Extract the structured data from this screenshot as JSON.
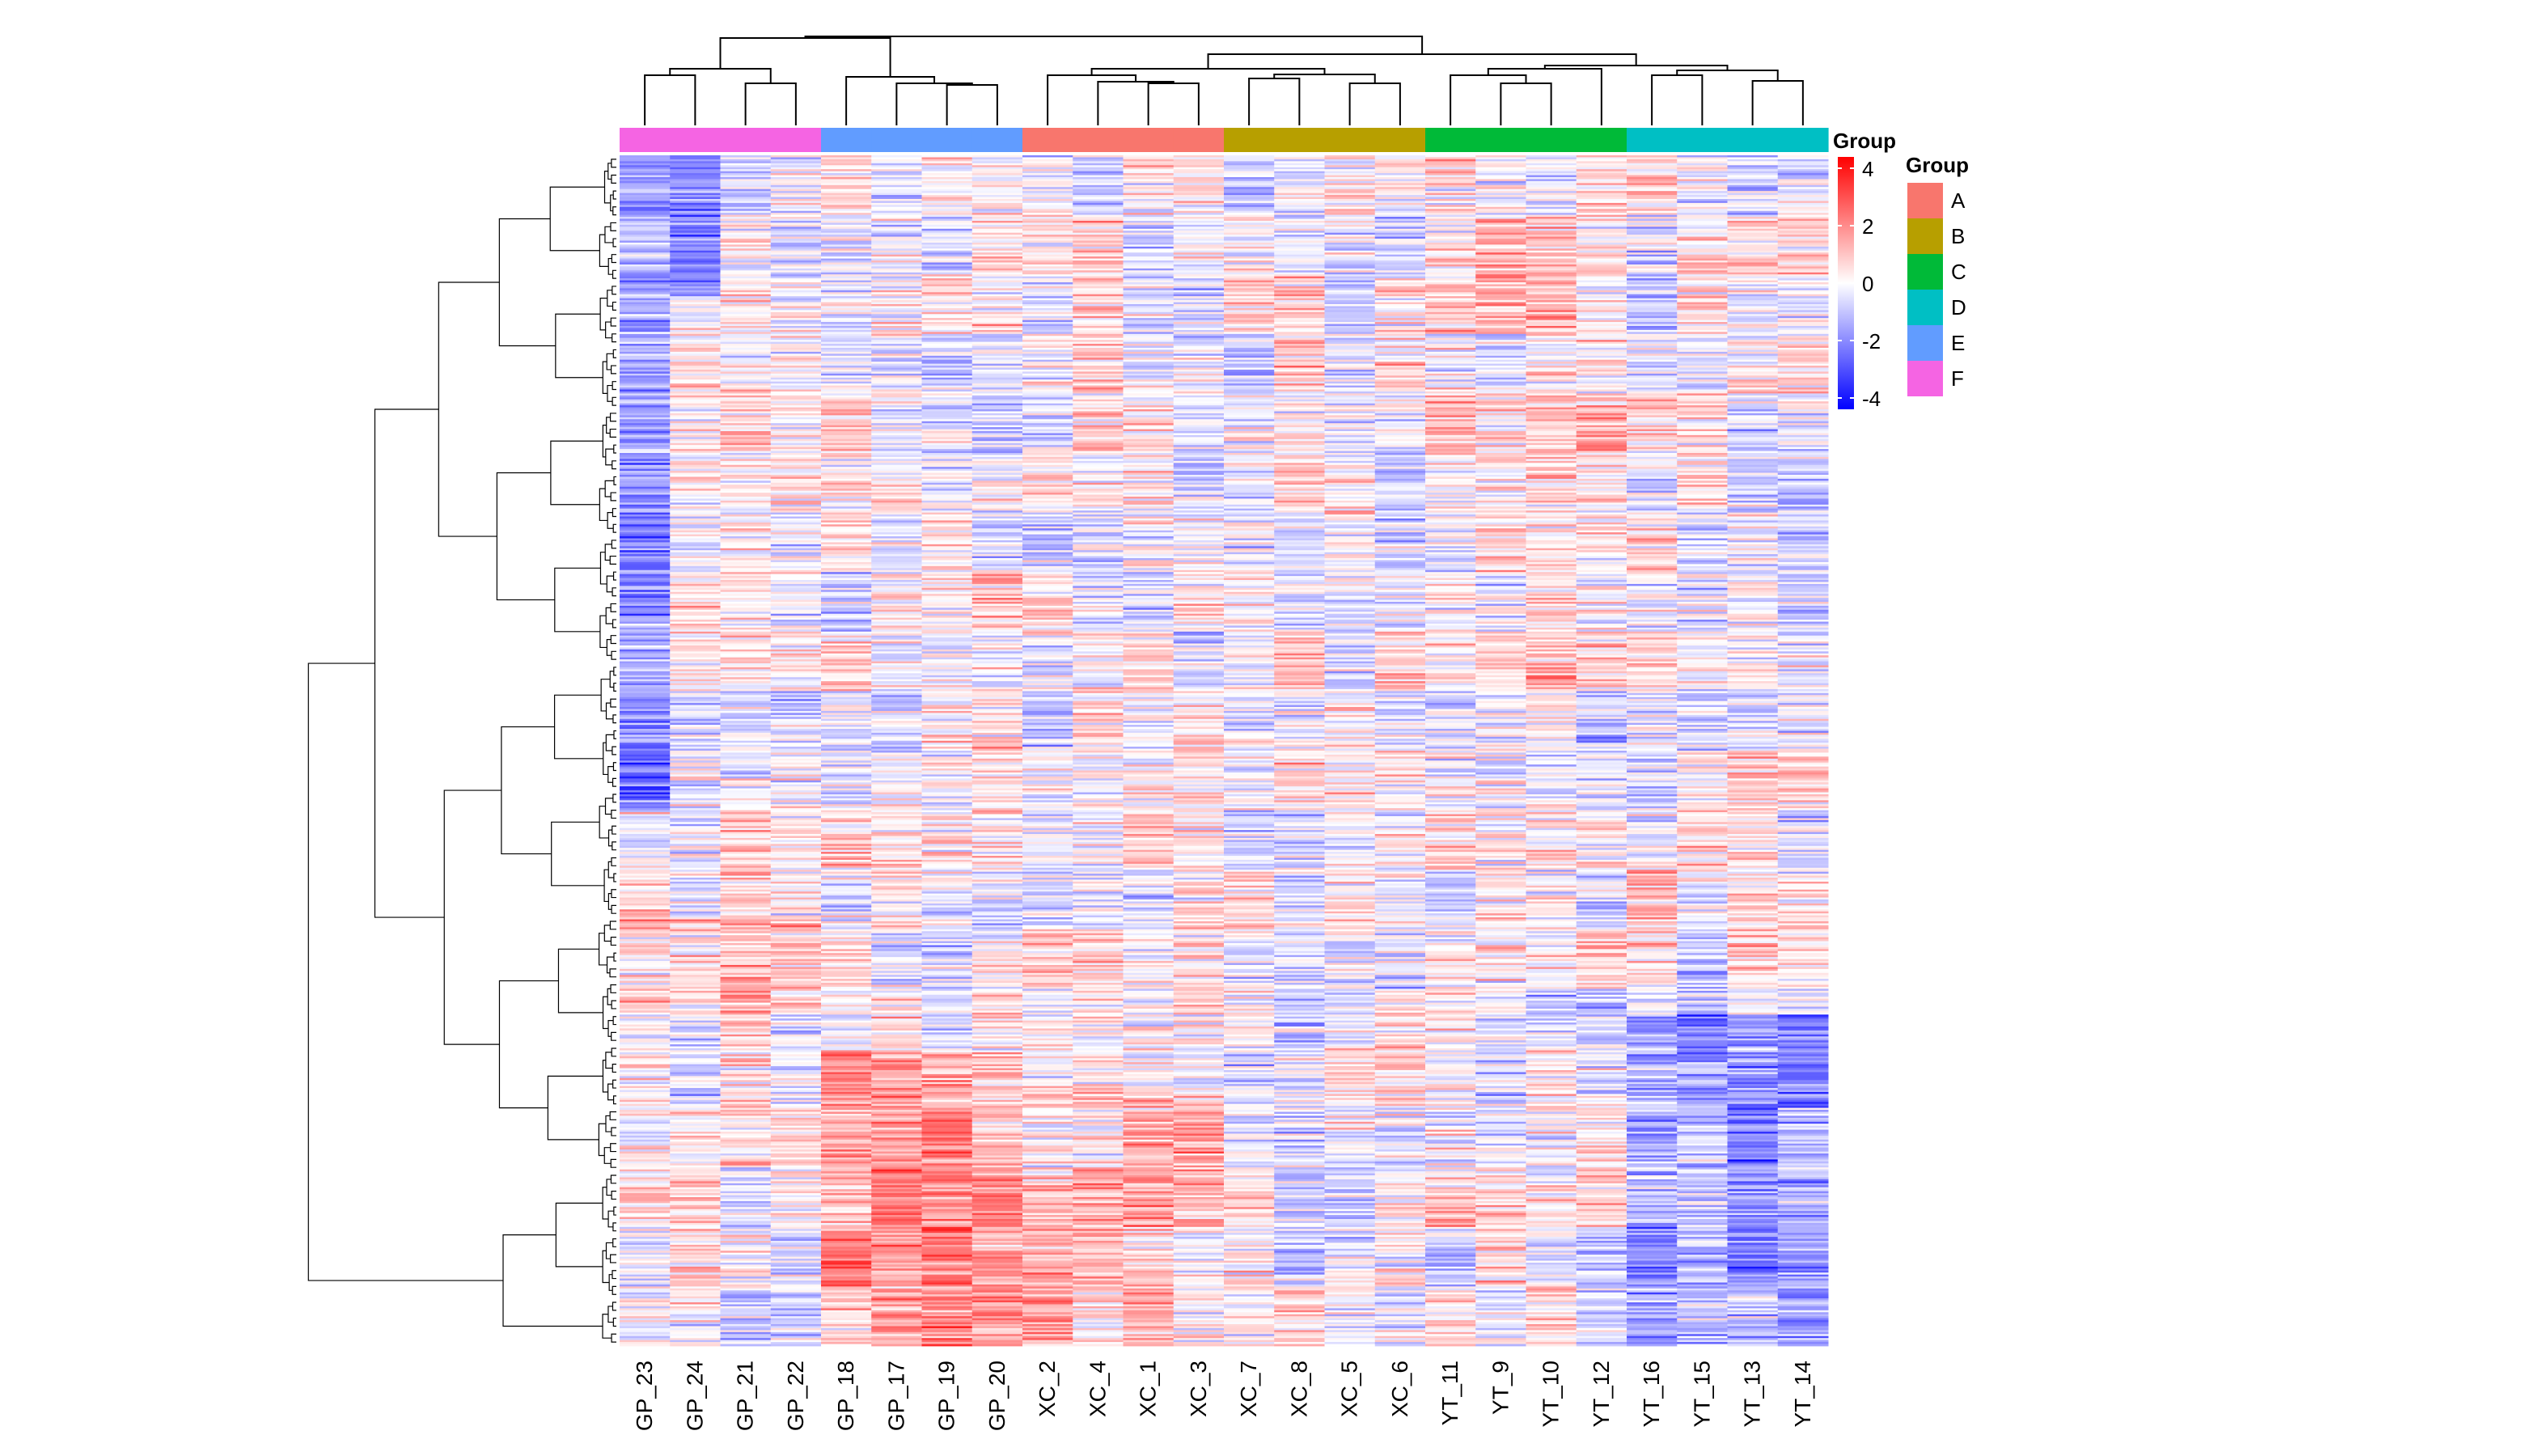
{
  "chart_data": {
    "type": "heatmap",
    "columns": [
      "GP_23",
      "GP_24",
      "GP_21",
      "GP_22",
      "GP_18",
      "GP_17",
      "GP_19",
      "GP_20",
      "XC_2",
      "XC_4",
      "XC_1",
      "XC_3",
      "XC_7",
      "XC_8",
      "XC_5",
      "XC_6",
      "YT_11",
      "YT_9",
      "YT_10",
      "YT_12",
      "YT_16",
      "YT_15",
      "YT_13",
      "YT_14"
    ],
    "column_groups": [
      "F",
      "F",
      "F",
      "F",
      "E",
      "E",
      "E",
      "E",
      "A",
      "A",
      "A",
      "A",
      "B",
      "B",
      "B",
      "B",
      "C",
      "C",
      "C",
      "C",
      "D",
      "D",
      "D",
      "D"
    ],
    "row_count": 600,
    "value_range": [
      -4,
      4
    ],
    "colorbar": {
      "ticks": [
        4,
        2,
        0,
        -2,
        -4
      ],
      "colors": {
        "low": "#0000ff",
        "mid": "#ffffff",
        "high": "#ff0000"
      }
    },
    "annotation_label": "Group",
    "legend": {
      "title": "Group",
      "position": "right",
      "items": [
        {
          "label": "A",
          "color": "#f8766d"
        },
        {
          "label": "B",
          "color": "#b79f00"
        },
        {
          "label": "C",
          "color": "#00ba38"
        },
        {
          "label": "D",
          "color": "#00bfc4"
        },
        {
          "label": "E",
          "color": "#619cff"
        },
        {
          "label": "F",
          "color": "#f564e3"
        }
      ]
    },
    "column_dendrogram": true,
    "row_dendrogram": true
  }
}
